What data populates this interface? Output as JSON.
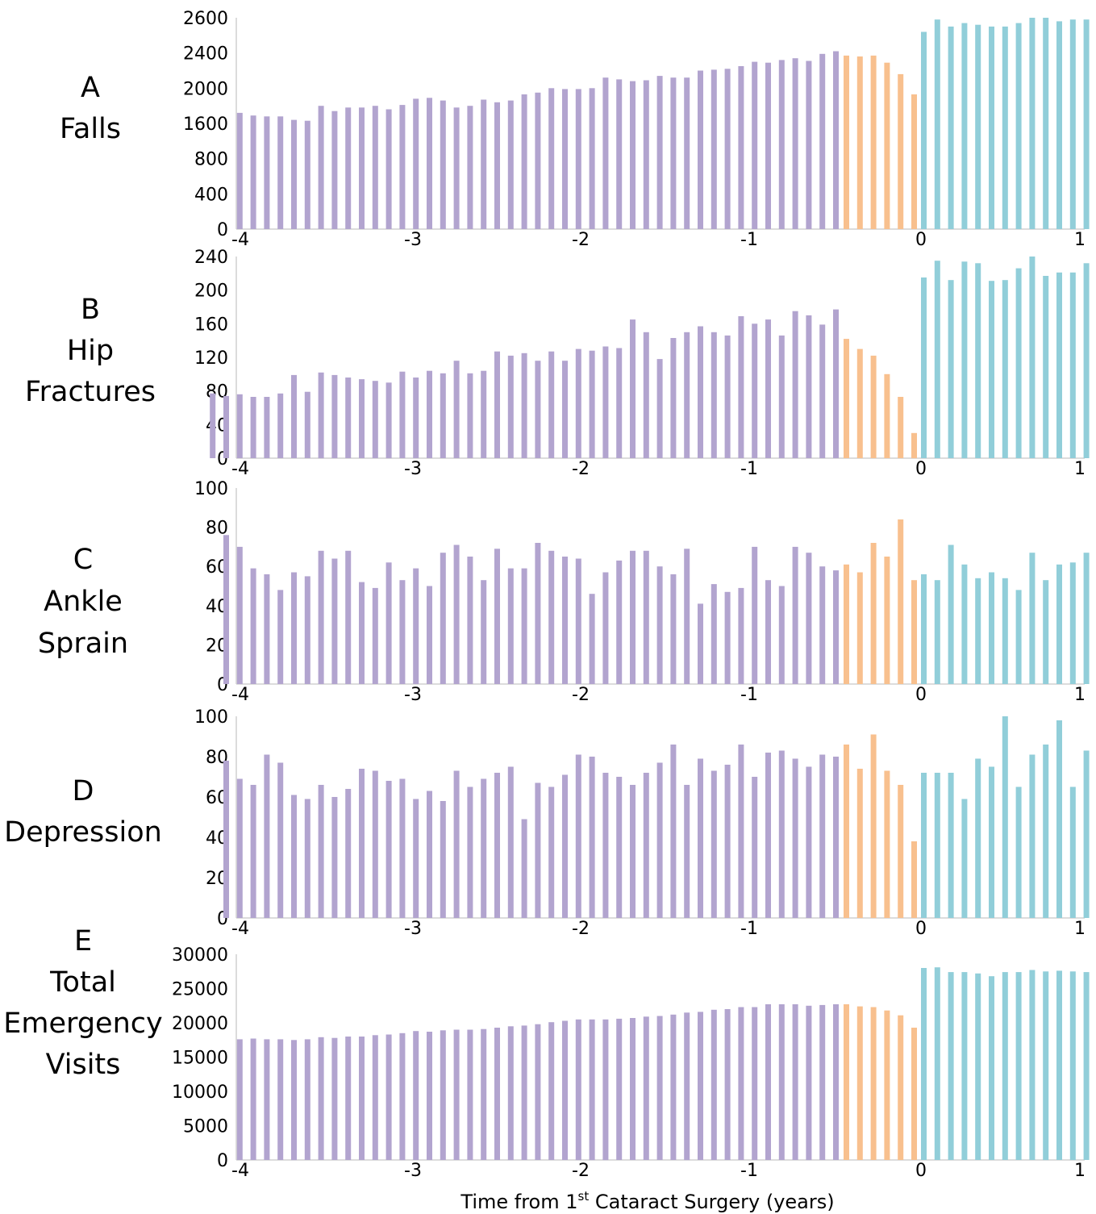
{
  "colors": {
    "pre": "#b2a4cf",
    "peri": "#f8c08e",
    "post": "#91ced9",
    "axis": "#d0d0d0"
  },
  "xlabel": {
    "prefix": "Time from 1",
    "sup": "st",
    "suffix": " Cataract Surgery (years)"
  },
  "chart_data": [
    {
      "type": "bar",
      "label_lines": [
        "A",
        "Falls"
      ],
      "x_ticks": [
        "-4",
        "-3",
        "-2",
        "-1",
        "0",
        "1"
      ],
      "y_ticks": [
        "0",
        "400",
        "800",
        "1600",
        "2000",
        "2400",
        "2600"
      ],
      "y_tick_values": [
        0,
        400,
        800,
        1600,
        2000,
        2400,
        2600
      ],
      "values": {
        "pre": [
          1720,
          1690,
          1680,
          1680,
          1640,
          1630,
          1800,
          1740,
          1780,
          1780,
          1800,
          1760,
          1810,
          1880,
          1890,
          1860,
          1780,
          1800,
          1870,
          1840,
          1860,
          1930,
          1950,
          2000,
          1990,
          1990,
          2000,
          2120,
          2100,
          2080,
          2090,
          2140,
          2120,
          2120,
          2200,
          2210,
          2220,
          2250,
          2300,
          2290,
          2320,
          2340,
          2310,
          2390,
          2410
        ],
        "peri": [
          2370,
          2360,
          2370,
          2290,
          2160,
          1930
        ],
        "post": [
          2520,
          2590,
          2550,
          2570,
          2560,
          2550,
          2550,
          2570,
          2600,
          2610,
          2580,
          2590,
          2590
        ]
      }
    },
    {
      "type": "bar",
      "label_lines": [
        "B",
        "Hip",
        "Fractures"
      ],
      "x_ticks": [
        "-4",
        "-3",
        "-2",
        "-1",
        "0",
        "1"
      ],
      "y_ticks": [
        "0",
        "40",
        "80",
        "120",
        "160",
        "200",
        "240"
      ],
      "y_tick_values": [
        0,
        40,
        80,
        120,
        160,
        200,
        240
      ],
      "values": {
        "pre": [
          77,
          74,
          76,
          73,
          73,
          77,
          99,
          79,
          102,
          99,
          96,
          94,
          92,
          90,
          103,
          96,
          104,
          101,
          116,
          101,
          104,
          127,
          122,
          125,
          116,
          127,
          116,
          130,
          128,
          133,
          131,
          165,
          150,
          118,
          143,
          150,
          157,
          150,
          146,
          169,
          160,
          165,
          146,
          175,
          170,
          159,
          177
        ],
        "peri": [
          142,
          130,
          122,
          100,
          73,
          30
        ],
        "post": [
          215,
          235,
          212,
          234,
          232,
          211,
          212,
          226,
          243,
          217,
          221,
          221,
          232
        ]
      }
    },
    {
      "type": "bar",
      "label_lines": [
        "C",
        "Ankle",
        "Sprain"
      ],
      "x_ticks": [
        "-4",
        "-3",
        "-2",
        "-1",
        "0",
        "1"
      ],
      "y_ticks": [
        "0",
        "20",
        "40",
        "60",
        "80",
        "100"
      ],
      "y_tick_values": [
        0,
        20,
        40,
        60,
        80,
        100
      ],
      "values": {
        "pre": [
          76,
          70,
          59,
          56,
          48,
          57,
          55,
          68,
          64,
          68,
          52,
          49,
          62,
          53,
          59,
          50,
          67,
          71,
          65,
          53,
          69,
          59,
          59,
          72,
          68,
          65,
          64,
          46,
          57,
          63,
          68,
          68,
          60,
          56,
          69,
          41,
          51,
          47,
          49,
          70,
          53,
          50,
          70,
          67,
          60,
          58
        ],
        "peri": [
          61,
          57,
          72,
          65,
          84,
          53
        ],
        "post": [
          56,
          53,
          71,
          61,
          54,
          57,
          54,
          48,
          67,
          53,
          61,
          62,
          67
        ]
      }
    },
    {
      "type": "bar",
      "label_lines": [
        "D",
        "Depression"
      ],
      "x_ticks": [
        "-4",
        "-3",
        "-2",
        "-1",
        "0",
        "1"
      ],
      "y_ticks": [
        "0",
        "20",
        "40",
        "60",
        "80",
        "100"
      ],
      "y_tick_values": [
        0,
        20,
        40,
        60,
        80,
        100
      ],
      "values": {
        "pre": [
          78,
          69,
          66,
          81,
          77,
          61,
          59,
          66,
          60,
          64,
          74,
          73,
          68,
          69,
          59,
          63,
          58,
          73,
          65,
          69,
          72,
          75,
          49,
          67,
          65,
          71,
          81,
          80,
          72,
          70,
          66,
          72,
          77,
          86,
          66,
          79,
          73,
          76,
          86,
          70,
          82,
          83,
          79,
          75,
          81,
          80
        ],
        "peri": [
          86,
          74,
          91,
          73,
          66,
          38
        ],
        "post": [
          72,
          72,
          72,
          59,
          79,
          75,
          100,
          65,
          81,
          86,
          98,
          65,
          83
        ]
      }
    },
    {
      "type": "bar",
      "label_lines": [
        "E",
        "Total",
        "Emergency",
        "Visits"
      ],
      "x_ticks": [
        "-4",
        "-3",
        "-2",
        "-1",
        "0",
        "1"
      ],
      "y_ticks": [
        "0",
        "5000",
        "10000",
        "15000",
        "20000",
        "25000",
        "30000"
      ],
      "y_tick_values": [
        0,
        5000,
        10000,
        15000,
        20000,
        25000,
        30000
      ],
      "values": {
        "pre": [
          17600,
          17700,
          17600,
          17600,
          17500,
          17600,
          17900,
          17800,
          18000,
          18000,
          18200,
          18300,
          18500,
          18800,
          18700,
          18900,
          19000,
          19000,
          19100,
          19300,
          19500,
          19600,
          19800,
          20100,
          20300,
          20500,
          20500,
          20500,
          20600,
          20700,
          20900,
          21000,
          21200,
          21500,
          21600,
          21900,
          22000,
          22300,
          22300,
          22700,
          22700,
          22700,
          22500,
          22600,
          22700
        ],
        "peri": [
          22700,
          22400,
          22300,
          21800,
          21100,
          19300
        ],
        "post": [
          28000,
          28100,
          27400,
          27400,
          27200,
          26800,
          27400,
          27400,
          27700,
          27500,
          27600,
          27500,
          27400
        ]
      }
    }
  ]
}
